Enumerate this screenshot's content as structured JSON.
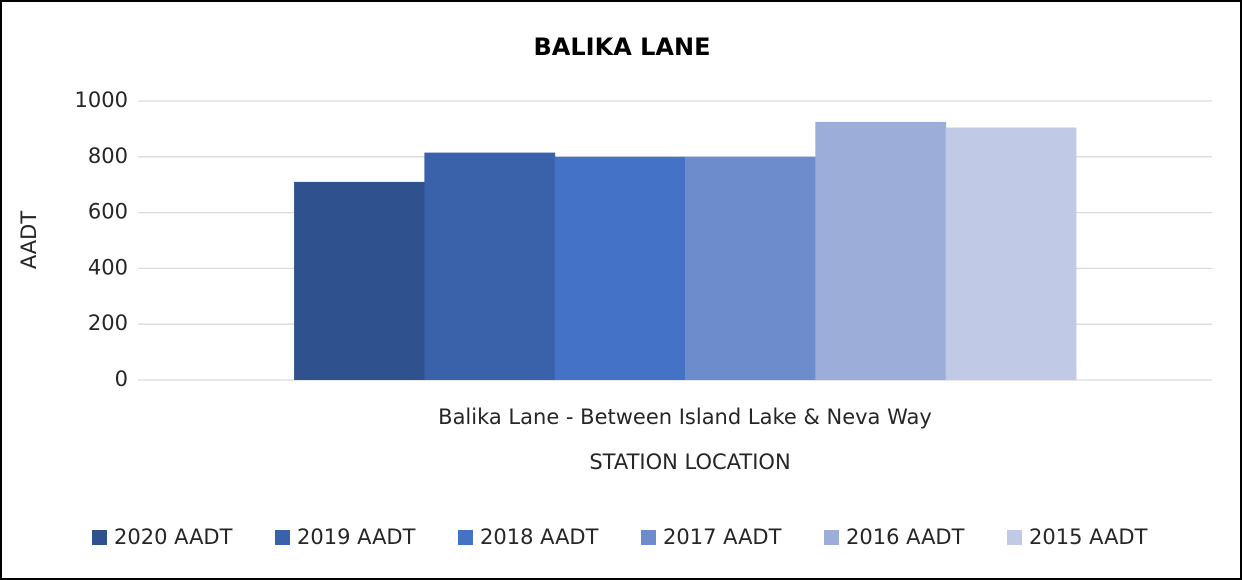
{
  "chart_data": {
    "type": "bar",
    "title": "BALIKA LANE",
    "categories": [
      "Balika Lane - Between Island Lake & Neva Way"
    ],
    "series": [
      {
        "name": "2020 AADT",
        "color": "#2f528f",
        "values": [
          710
        ]
      },
      {
        "name": "2019 AADT",
        "color": "#3a62ab",
        "values": [
          815
        ]
      },
      {
        "name": "2018 AADT",
        "color": "#4472c4",
        "values": [
          800
        ]
      },
      {
        "name": "2017 AADT",
        "color": "#6c8ccc",
        "values": [
          800
        ]
      },
      {
        "name": "2016 AADT",
        "color": "#9dadd9",
        "values": [
          925
        ]
      },
      {
        "name": "2015 AADT",
        "color": "#c0c9e5",
        "values": [
          905
        ]
      }
    ],
    "ylabel": "AADT",
    "xlabel": "STATION LOCATION",
    "ylim": [
      0,
      1000
    ],
    "yticks": [
      0,
      200,
      400,
      600,
      800,
      1000
    ],
    "grid": true,
    "legend": "bottom"
  }
}
